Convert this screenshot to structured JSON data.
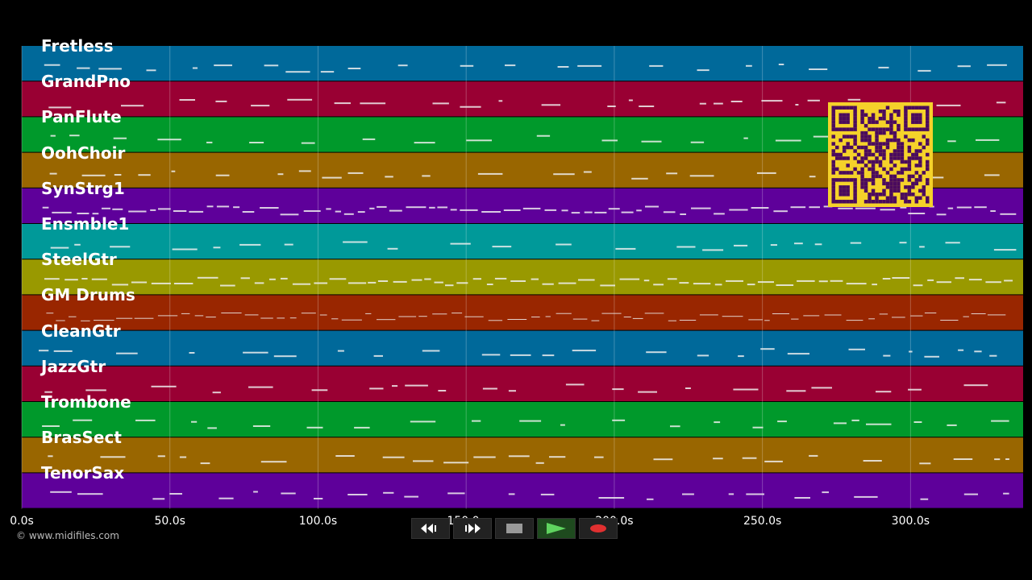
{
  "tracks": [
    {
      "name": "Fretless",
      "color": "#00699a"
    },
    {
      "name": "GrandPno",
      "color": "#990033"
    },
    {
      "name": "PanFlute",
      "color": "#00992b"
    },
    {
      "name": "OohChoir",
      "color": "#996600"
    },
    {
      "name": "SynStrg1",
      "color": "#5e009a"
    },
    {
      "name": "Ensmble1",
      "color": "#009999"
    },
    {
      "name": "SteelGtr",
      "color": "#999900"
    },
    {
      "name": "GM Drums",
      "color": "#992600"
    },
    {
      "name": "CleanGtr",
      "color": "#00699a"
    },
    {
      "name": "JazzGtr",
      "color": "#990033"
    },
    {
      "name": "Trombone",
      "color": "#00992b"
    },
    {
      "name": "BrasSect",
      "color": "#996600"
    },
    {
      "name": "TenorSax",
      "color": "#5e009a"
    }
  ],
  "axis": {
    "range_seconds": [
      0,
      338
    ],
    "ticks": [
      {
        "value": 0,
        "label": "0.0s"
      },
      {
        "value": 50,
        "label": "50.0s"
      },
      {
        "value": 100,
        "label": "100.0s"
      },
      {
        "value": 150,
        "label": "150.0s"
      },
      {
        "value": 200,
        "label": "200.0s"
      },
      {
        "value": 250,
        "label": "250.0s"
      },
      {
        "value": 300,
        "label": "300.0s"
      }
    ]
  },
  "footer": {
    "copyright": "© www.midifiles.com"
  },
  "qr": {
    "fg": "#4a0a5e",
    "bg": "#f5d22a"
  },
  "transport": {
    "rewind_icon": "rewind-icon",
    "fast_forward_icon": "fast-forward-icon",
    "stop_icon": "stop-icon",
    "play_icon": "play-icon",
    "record_icon": "record-icon"
  }
}
